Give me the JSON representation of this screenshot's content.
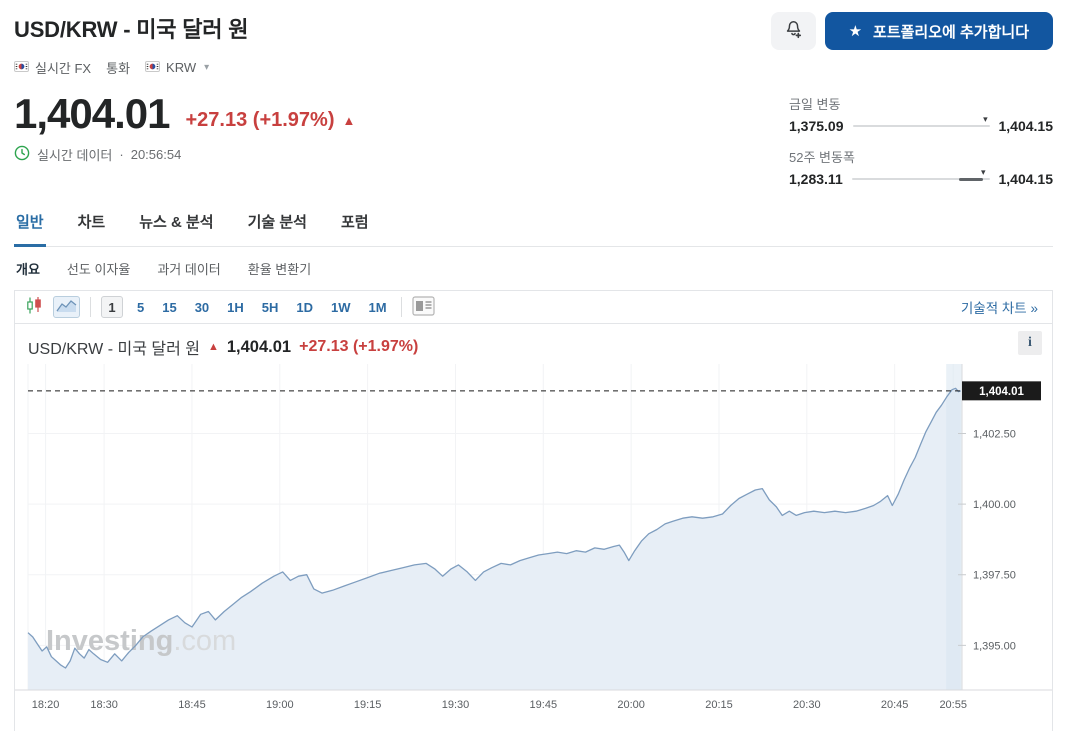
{
  "header": {
    "title": "USD/KRW - 미국 달러 원",
    "breadcrumb": {
      "item1": "실시간 FX",
      "item2": "통화",
      "item3": "KRW"
    },
    "price": "1,404.01",
    "change": "+27.13 (+1.97%)",
    "realtime_label": "실시간 데이터",
    "realtime_sep": "·",
    "realtime_time": "20:56:54",
    "portfolio_button": "포트폴리오에 추가합니다"
  },
  "icons": {
    "star": "★",
    "up_arrow": "▲",
    "down_marker": "▾",
    "chevron_down": "▾",
    "info": "i"
  },
  "ranges": {
    "day": {
      "label": "금일 변동",
      "low": "1,375.09",
      "high": "1,404.15",
      "pos": 0.97
    },
    "week52": {
      "label": "52주 변동폭",
      "low": "1,283.11",
      "high": "1,404.15",
      "pos": 0.955,
      "seg_start": 0.78
    }
  },
  "tabs": {
    "items": [
      {
        "label": "일반",
        "active": true
      },
      {
        "label": "차트"
      },
      {
        "label": "뉴스 & 분석"
      },
      {
        "label": "기술 분석"
      },
      {
        "label": "포럼"
      }
    ]
  },
  "subtabs": {
    "items": [
      {
        "label": "개요",
        "active": true
      },
      {
        "label": "선도 이자율"
      },
      {
        "label": "과거 데이터"
      },
      {
        "label": "환율 변환기"
      }
    ]
  },
  "toolbar": {
    "intervals": [
      "1",
      "5",
      "15",
      "30",
      "1H",
      "5H",
      "1D",
      "1W",
      "1M"
    ],
    "selected_interval": "1",
    "technical_link": "기술적 차트 »"
  },
  "chart_header": {
    "title": "USD/KRW - 미국 달러 원",
    "price": "1,404.01",
    "change": "+27.13 (+1.97%)"
  },
  "colors": {
    "brand_blue": "#1256a0",
    "tab_blue": "#2a6da5",
    "red": "#c8403f",
    "line": "#7e9dbf",
    "fill": "#e7eef6",
    "band": "#d9e5f1",
    "grid": "#f2f3f5",
    "axis": "#d8dadd",
    "tick_text": "#5a5e62",
    "badge_bg": "#1b1b1b",
    "badge_text": "#ffffff",
    "watermark_bold": "#c6c8ca",
    "watermark_light": "#d8dadc",
    "clock_green": "#2da44e"
  },
  "chart_data": {
    "type": "area",
    "title": "USD/KRW 1-minute intraday",
    "x_unit": "minutes after 18:17",
    "t_range": [
      0,
      159.5
    ],
    "y_range": [
      1393.42,
      1404.96
    ],
    "current_price": 1404.01,
    "current_price_label": "1,404.01",
    "highlight_band_start": 156.8,
    "watermark_bold": "Investing",
    "watermark_light": ".com",
    "x_ticks": [
      {
        "t": 3,
        "label": "18:20"
      },
      {
        "t": 13,
        "label": "18:30"
      },
      {
        "t": 28,
        "label": "18:45"
      },
      {
        "t": 43,
        "label": "19:00"
      },
      {
        "t": 58,
        "label": "19:15"
      },
      {
        "t": 73,
        "label": "19:30"
      },
      {
        "t": 88,
        "label": "19:45"
      },
      {
        "t": 103,
        "label": "20:00"
      },
      {
        "t": 118,
        "label": "20:15"
      },
      {
        "t": 133,
        "label": "20:30"
      },
      {
        "t": 148,
        "label": "20:45"
      },
      {
        "t": 158,
        "label": "20:55"
      }
    ],
    "y_ticks": [
      {
        "v": 1395.0,
        "label": "1,395.00"
      },
      {
        "v": 1397.5,
        "label": "1,397.50"
      },
      {
        "v": 1400.0,
        "label": "1,400.00"
      },
      {
        "v": 1402.5,
        "label": "1,402.50"
      }
    ],
    "points": [
      [
        0,
        1395.45
      ],
      [
        0.8,
        1395.3
      ],
      [
        1.6,
        1395.05
      ],
      [
        2.4,
        1394.8
      ],
      [
        3.2,
        1394.95
      ],
      [
        4,
        1394.6
      ],
      [
        4.8,
        1394.45
      ],
      [
        5.6,
        1394.3
      ],
      [
        6.4,
        1394.2
      ],
      [
        7.2,
        1394.45
      ],
      [
        8,
        1394.9
      ],
      [
        8.8,
        1394.7
      ],
      [
        9.6,
        1394.55
      ],
      [
        10.4,
        1394.85
      ],
      [
        11.2,
        1394.7
      ],
      [
        12.4,
        1394.5
      ],
      [
        13.6,
        1394.4
      ],
      [
        14.8,
        1394.7
      ],
      [
        16,
        1394.45
      ],
      [
        17.2,
        1394.75
      ],
      [
        18.4,
        1395.0
      ],
      [
        19.6,
        1395.3
      ],
      [
        21,
        1395.5
      ],
      [
        22.5,
        1395.7
      ],
      [
        24,
        1395.9
      ],
      [
        25.5,
        1396.05
      ],
      [
        26.8,
        1395.8
      ],
      [
        28,
        1395.65
      ],
      [
        29.5,
        1396.1
      ],
      [
        30.8,
        1396.2
      ],
      [
        32,
        1395.9
      ],
      [
        33.5,
        1396.2
      ],
      [
        35,
        1396.45
      ],
      [
        36.5,
        1396.7
      ],
      [
        38,
        1396.9
      ],
      [
        40,
        1397.2
      ],
      [
        42,
        1397.45
      ],
      [
        43.5,
        1397.6
      ],
      [
        44.8,
        1397.3
      ],
      [
        46.2,
        1397.45
      ],
      [
        47.6,
        1397.5
      ],
      [
        48.8,
        1397.0
      ],
      [
        50.2,
        1396.85
      ],
      [
        52,
        1396.95
      ],
      [
        54,
        1397.1
      ],
      [
        56,
        1397.25
      ],
      [
        58,
        1397.4
      ],
      [
        60,
        1397.55
      ],
      [
        62,
        1397.65
      ],
      [
        64,
        1397.75
      ],
      [
        66,
        1397.85
      ],
      [
        68,
        1397.9
      ],
      [
        69.5,
        1397.7
      ],
      [
        70.8,
        1397.45
      ],
      [
        72.2,
        1397.7
      ],
      [
        73.5,
        1397.85
      ],
      [
        75,
        1397.6
      ],
      [
        76.4,
        1397.3
      ],
      [
        77.8,
        1397.6
      ],
      [
        79.2,
        1397.75
      ],
      [
        80.8,
        1397.9
      ],
      [
        82.4,
        1397.85
      ],
      [
        84,
        1398.0
      ],
      [
        85.6,
        1398.1
      ],
      [
        87.2,
        1398.2
      ],
      [
        88.8,
        1398.25
      ],
      [
        90.4,
        1398.3
      ],
      [
        92,
        1398.25
      ],
      [
        93.6,
        1398.35
      ],
      [
        95.2,
        1398.3
      ],
      [
        96.8,
        1398.45
      ],
      [
        98.4,
        1398.4
      ],
      [
        100,
        1398.5
      ],
      [
        101,
        1398.55
      ],
      [
        101.8,
        1398.3
      ],
      [
        102.6,
        1398.0
      ],
      [
        103.6,
        1398.35
      ],
      [
        104.8,
        1398.7
      ],
      [
        106,
        1398.95
      ],
      [
        107.4,
        1399.1
      ],
      [
        108.8,
        1399.3
      ],
      [
        110.2,
        1399.4
      ],
      [
        111.8,
        1399.5
      ],
      [
        113.4,
        1399.55
      ],
      [
        115.2,
        1399.5
      ],
      [
        117,
        1399.55
      ],
      [
        118.6,
        1399.65
      ],
      [
        120,
        1399.95
      ],
      [
        121.4,
        1400.2
      ],
      [
        122.8,
        1400.35
      ],
      [
        124.2,
        1400.5
      ],
      [
        125.4,
        1400.55
      ],
      [
        126.6,
        1400.15
      ],
      [
        127.8,
        1399.9
      ],
      [
        128.8,
        1399.6
      ],
      [
        130,
        1399.75
      ],
      [
        131.2,
        1399.6
      ],
      [
        132.6,
        1399.7
      ],
      [
        134.2,
        1399.75
      ],
      [
        136,
        1399.7
      ],
      [
        137.8,
        1399.75
      ],
      [
        139.6,
        1399.7
      ],
      [
        141.4,
        1399.75
      ],
      [
        143,
        1399.85
      ],
      [
        144.4,
        1399.95
      ],
      [
        145.6,
        1400.1
      ],
      [
        146.8,
        1400.3
      ],
      [
        147.6,
        1399.95
      ],
      [
        148.6,
        1400.35
      ],
      [
        149.6,
        1400.85
      ],
      [
        150.6,
        1401.3
      ],
      [
        151.5,
        1401.65
      ],
      [
        152.4,
        1402.1
      ],
      [
        153.3,
        1402.55
      ],
      [
        154.2,
        1402.9
      ],
      [
        155.1,
        1403.25
      ],
      [
        156,
        1403.5
      ],
      [
        156.9,
        1403.8
      ],
      [
        157.8,
        1404.05
      ],
      [
        158.4,
        1404.1
      ],
      [
        158.9,
        1403.98
      ],
      [
        159.3,
        1404.01
      ]
    ]
  }
}
